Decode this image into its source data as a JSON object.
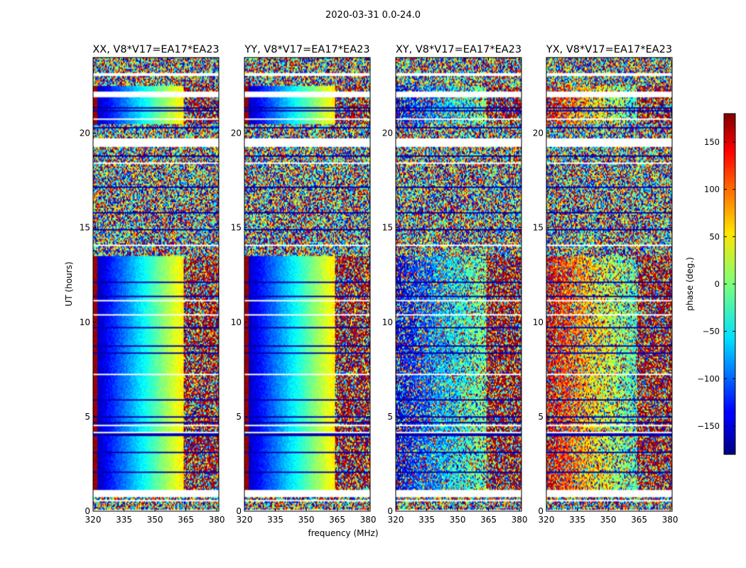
{
  "figure": {
    "suptitle": "2020-03-31 0.0-24.0",
    "xlabel": "frequency (MHz)",
    "ylabel": "UT (hours)"
  },
  "chart_data": {
    "type": "heatmap",
    "x_range": [
      320,
      381
    ],
    "y_range": [
      0,
      24
    ],
    "xticks": [
      320,
      335,
      350,
      365,
      380
    ],
    "xtick_labels": [
      "320",
      "335",
      "350",
      "365",
      "380"
    ],
    "yticks": [
      0,
      5,
      10,
      15,
      20
    ],
    "ytick_labels": [
      "0",
      "5",
      "10",
      "15",
      "20"
    ],
    "panels": [
      {
        "title": "XX, V8*V17=EA17*EA23",
        "pattern": "parallel"
      },
      {
        "title": "YY, V8*V17=EA17*EA23",
        "pattern": "parallel"
      },
      {
        "title": "XY, V8*V17=EA17*EA23",
        "pattern": "cross_blue"
      },
      {
        "title": "YX, V8*V17=EA17*EA23",
        "pattern": "cross_red"
      }
    ],
    "colorbar": {
      "label": "phase (deg.)",
      "range": [
        -180,
        180
      ],
      "ticks": [
        150,
        100,
        50,
        0,
        -50,
        -100,
        -150
      ],
      "tick_labels": [
        "150",
        "100",
        "50",
        "0",
        "−50",
        "−100",
        "−150"
      ],
      "colormap": "jet"
    },
    "coherent_time_ranges_hr": [
      [
        1.1,
        13.5
      ],
      [
        20.5,
        22.5
      ]
    ],
    "flagged_time_ranges_hr": [
      [
        0.75,
        1.15
      ],
      [
        19.3,
        19.75
      ],
      [
        21.9,
        22.2
      ],
      [
        23.0,
        23.15
      ]
    ],
    "ripple_start_mhz": 364
  }
}
